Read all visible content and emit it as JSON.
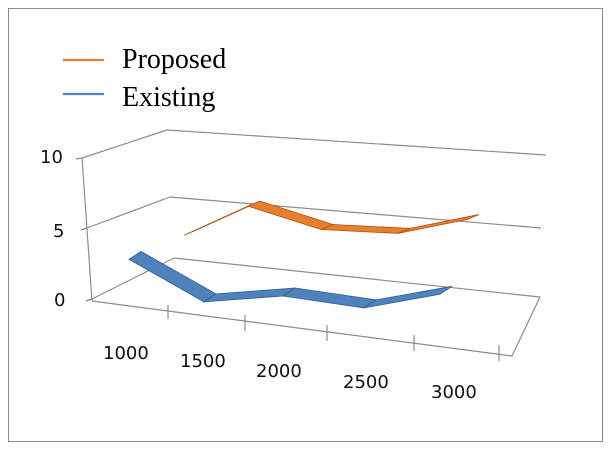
{
  "chart_data": {
    "type": "line",
    "title": "",
    "xlabel": "",
    "ylabel": "",
    "categories": [
      "1000",
      "1500",
      "2000",
      "2500",
      "3000"
    ],
    "y_ticks": [
      "0",
      "5",
      "10"
    ],
    "ylim": [
      0,
      10
    ],
    "grid": true,
    "legend_position": "top-left",
    "series": [
      {
        "name": "Proposed",
        "values": [
          4.1,
          8.7,
          6.5,
          6.8,
          9.5
        ],
        "color": "#e97f2a",
        "color_dark": "#a94f12"
      },
      {
        "name": "Existing",
        "values": [
          6.8,
          1.3,
          3.0,
          2.3,
          5.1
        ],
        "color": "#4f81bd",
        "color_dark": "#335f90"
      }
    ]
  }
}
